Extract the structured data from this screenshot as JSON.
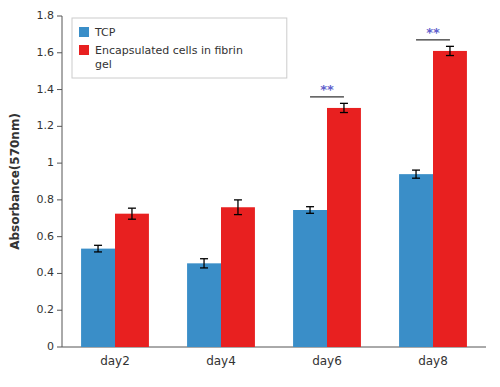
{
  "chart_data": {
    "type": "bar",
    "categories": [
      "day2",
      "day4",
      "day6",
      "day8"
    ],
    "series": [
      {
        "name": "TCP",
        "color": "#3A8EC8",
        "values": [
          0.535,
          0.455,
          0.745,
          0.94
        ],
        "errors": [
          0.018,
          0.025,
          0.018,
          0.022
        ]
      },
      {
        "name": "Encapsulated cells in fibrin\ngel",
        "color": "#E82020",
        "values": [
          0.725,
          0.76,
          1.3,
          1.61
        ],
        "errors": [
          0.03,
          0.04,
          0.025,
          0.025
        ]
      }
    ],
    "ylabel": "Absorbance(570nm)",
    "ylim": [
      0,
      1.8
    ],
    "yticks": [
      0,
      0.2,
      0.4,
      0.6,
      0.8,
      1,
      1.2,
      1.4,
      1.6,
      1.8
    ],
    "grid": false,
    "legend": "upper left",
    "annotations": [
      {
        "text": "**",
        "category": "day6",
        "line_y": 1.36,
        "y": 1.375,
        "color": "#6060CC"
      },
      {
        "text": "**",
        "category": "day8",
        "line_y": 1.67,
        "y": 1.685,
        "color": "#6060CC"
      }
    ]
  }
}
